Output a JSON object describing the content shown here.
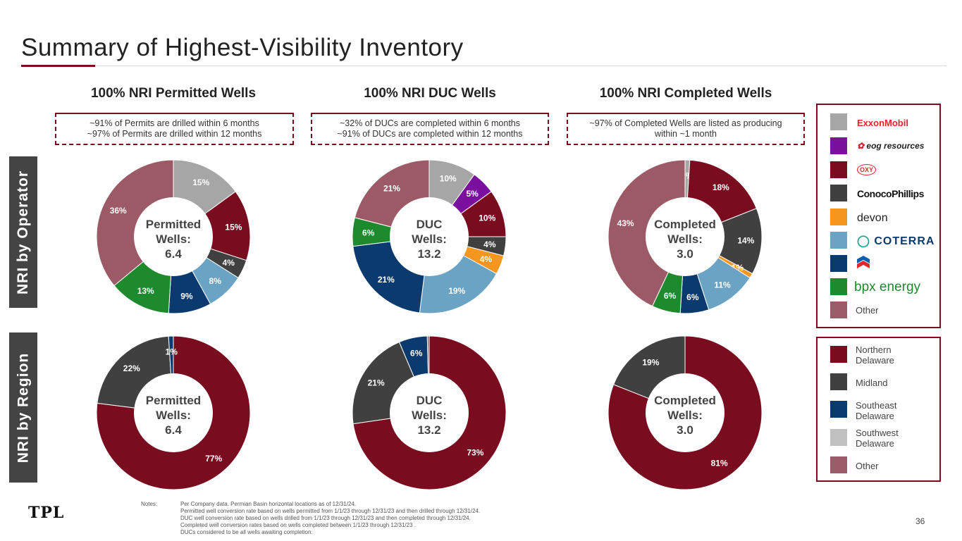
{
  "page": {
    "title": "Summary of Highest-Visibility Inventory",
    "page_number": "36",
    "footer_logo": "TPL"
  },
  "columns": [
    {
      "heading": "100% NRI Permitted Wells",
      "note_line1": "~91% of Permits are drilled within 6 months",
      "note_line2": "~97% of Permits are drilled within 12 months"
    },
    {
      "heading": "100% NRI DUC Wells",
      "note_line1": "~32% of DUCs are completed within 6 months",
      "note_line2": "~91% of DUCs are completed within 12 months"
    },
    {
      "heading": "100% NRI Completed Wells",
      "note_line1": "~97% of Completed Wells are listed as producing",
      "note_line2": "within ~1 month"
    }
  ],
  "row_labels": {
    "operator": "NRI by Operator",
    "region": "NRI by Region"
  },
  "colors": {
    "accent": "#7a0c20",
    "exxonmobil": "#a6a6a6",
    "eog": "#7b0f9e",
    "oxy": "#7a0c20",
    "conocophillips": "#404040",
    "devon": "#f5961f",
    "coterra": "#6aa3c3",
    "chevron": "#0b3b6e",
    "bpx": "#1e8a2e",
    "other": "#9c5a66",
    "northern_delaware": "#7a0c20",
    "midland": "#404040",
    "southeast_delaware": "#0b3b6e",
    "southwest_delaware": "#c0c0c0"
  },
  "operator_legend": [
    {
      "name": "ExxonMobil",
      "color": "#a6a6a6",
      "logo_icon": "exxonmobil-logo"
    },
    {
      "name": "eog resources",
      "color": "#7b0f9e",
      "logo_icon": "eog-logo"
    },
    {
      "name": "OXY",
      "color": "#7a0c20",
      "logo_icon": "oxy-logo"
    },
    {
      "name": "ConocoPhillips",
      "color": "#404040",
      "logo_icon": "conocophillips-logo"
    },
    {
      "name": "devon",
      "color": "#f5961f",
      "logo_icon": "devon-logo"
    },
    {
      "name": "COTERRA",
      "color": "#6aa3c3",
      "logo_icon": "coterra-logo"
    },
    {
      "name": "Chevron",
      "color": "#0b3b6e",
      "logo_icon": "chevron-logo"
    },
    {
      "name": "bpx energy",
      "color": "#1e8a2e",
      "logo_icon": "bpx-logo"
    },
    {
      "name": "Other",
      "color": "#9c5a66",
      "logo_icon": ""
    }
  ],
  "region_legend": [
    {
      "line1": "Northern",
      "line2": "Delaware",
      "color": "#7a0c20"
    },
    {
      "line1": "Midland",
      "line2": "",
      "color": "#404040"
    },
    {
      "line1": "Southeast",
      "line2": "Delaware",
      "color": "#0b3b6e"
    },
    {
      "line1": "Southwest",
      "line2": "Delaware",
      "color": "#c0c0c0"
    },
    {
      "line1": "Other",
      "line2": "",
      "color": "#9c5a66"
    }
  ],
  "notes": {
    "label": "Notes:",
    "lines": [
      "Per Company data. Permian Basin horizontal locations as of 12/31/24.",
      "Permitted well conversion rate based on wells permitted from 1/1/23 through 12/31/23 and then drilled through 12/31/24.",
      "DUC well conversion rate based on wells drilled from 1/1/23 through 12/31/23 and then completed through 12/31/24.",
      "Completed well conversion rates based on wells completed between 1/1/23 through 12/31/23 .",
      "DUCs considered to be all wells awaiting completion."
    ]
  },
  "chart_data": [
    {
      "type": "pie",
      "id": "operator-permitted",
      "center_line1": "Permitted",
      "center_line2": "Wells:",
      "center_value": "6.4",
      "slices": [
        {
          "name": "ExxonMobil",
          "value": 15,
          "label": "15%",
          "color": "#a6a6a6"
        },
        {
          "name": "OXY",
          "value": 15,
          "label": "15%",
          "color": "#7a0c20"
        },
        {
          "name": "ConocoPhillips",
          "value": 4,
          "label": "4%",
          "color": "#404040"
        },
        {
          "name": "COTERRA",
          "value": 8,
          "label": "8%",
          "color": "#6aa3c3"
        },
        {
          "name": "Chevron",
          "value": 9,
          "label": "9%",
          "color": "#0b3b6e"
        },
        {
          "name": "bpx energy",
          "value": 13,
          "label": "13%",
          "color": "#1e8a2e"
        },
        {
          "name": "Other",
          "value": 36,
          "label": "36%",
          "color": "#9c5a66"
        }
      ]
    },
    {
      "type": "pie",
      "id": "operator-duc",
      "center_line1": "DUC",
      "center_line2": "Wells:",
      "center_value": "13.2",
      "slices": [
        {
          "name": "ExxonMobil",
          "value": 10,
          "label": "10%",
          "color": "#a6a6a6"
        },
        {
          "name": "eog resources",
          "value": 5,
          "label": "5%",
          "color": "#7b0f9e"
        },
        {
          "name": "OXY",
          "value": 10,
          "label": "10%",
          "color": "#7a0c20"
        },
        {
          "name": "ConocoPhillips",
          "value": 4,
          "label": "4%",
          "color": "#404040"
        },
        {
          "name": "devon",
          "value": 4,
          "label": "4%",
          "color": "#f5961f"
        },
        {
          "name": "COTERRA",
          "value": 19,
          "label": "19%",
          "color": "#6aa3c3"
        },
        {
          "name": "Chevron",
          "value": 21,
          "label": "21%",
          "color": "#0b3b6e"
        },
        {
          "name": "bpx energy",
          "value": 6,
          "label": "6%",
          "color": "#1e8a2e"
        },
        {
          "name": "Other",
          "value": 21,
          "label": "21%",
          "color": "#9c5a66"
        }
      ]
    },
    {
      "type": "pie",
      "id": "operator-completed",
      "center_line1": "Completed",
      "center_line2": "Wells:",
      "center_value": "3.0",
      "slices": [
        {
          "name": "ExxonMobil",
          "value": 1,
          "label": "1%",
          "color": "#a6a6a6"
        },
        {
          "name": "OXY",
          "value": 18,
          "label": "18%",
          "color": "#7a0c20"
        },
        {
          "name": "ConocoPhillips",
          "value": 14,
          "label": "14%",
          "color": "#404040"
        },
        {
          "name": "devon",
          "value": 1,
          "label": "1%",
          "color": "#f5961f"
        },
        {
          "name": "COTERRA",
          "value": 11,
          "label": "11%",
          "color": "#6aa3c3"
        },
        {
          "name": "Chevron",
          "value": 6,
          "label": "6%",
          "color": "#0b3b6e"
        },
        {
          "name": "bpx energy",
          "value": 6,
          "label": "6%",
          "color": "#1e8a2e"
        },
        {
          "name": "Other",
          "value": 43,
          "label": "43%",
          "color": "#9c5a66"
        }
      ]
    },
    {
      "type": "pie",
      "id": "region-permitted",
      "center_line1": "Permitted",
      "center_line2": "Wells:",
      "center_value": "6.4",
      "slices": [
        {
          "name": "Northern Delaware",
          "value": 77,
          "label": "77%",
          "color": "#7a0c20"
        },
        {
          "name": "Midland",
          "value": 22,
          "label": "22%",
          "color": "#404040"
        },
        {
          "name": "Southeast Delaware",
          "value": 1,
          "label": "1%",
          "color": "#0b3b6e"
        }
      ]
    },
    {
      "type": "pie",
      "id": "region-duc",
      "center_line1": "DUC",
      "center_line2": "Wells:",
      "center_value": "13.2",
      "slices": [
        {
          "name": "Northern Delaware",
          "value": 73,
          "label": "73%",
          "color": "#7a0c20"
        },
        {
          "name": "Midland",
          "value": 21,
          "label": "21%",
          "color": "#404040"
        },
        {
          "name": "Southeast Delaware",
          "value": 6,
          "label": "6%",
          "color": "#0b3b6e"
        },
        {
          "name": "Other",
          "value": 0.4,
          "label": "",
          "color": "#9c5a66"
        }
      ]
    },
    {
      "type": "pie",
      "id": "region-completed",
      "center_line1": "Completed",
      "center_line2": "Wells:",
      "center_value": "3.0",
      "slices": [
        {
          "name": "Northern Delaware",
          "value": 81,
          "label": "81%",
          "color": "#7a0c20"
        },
        {
          "name": "Midland",
          "value": 19,
          "label": "19%",
          "color": "#404040"
        }
      ]
    }
  ]
}
